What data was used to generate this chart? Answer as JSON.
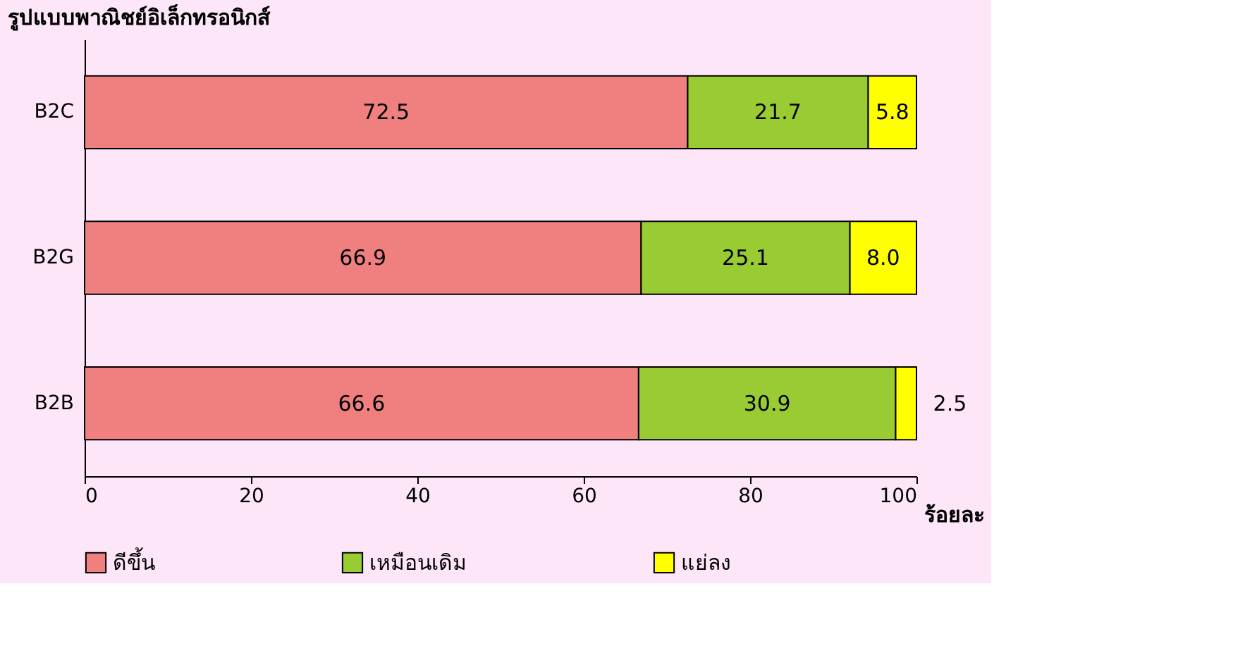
{
  "chart_data": {
    "type": "bar",
    "orientation": "horizontal",
    "stacked": true,
    "ylabel": "รูปแบบพาณิชย์อิเล็กทรอนิกส์",
    "xlabel": "ร้อยละ",
    "categories": [
      "B2C",
      "B2G",
      "B2B"
    ],
    "series": [
      {
        "name": "ดีขึ้น",
        "color": "#f08080",
        "values": [
          72.5,
          66.9,
          66.6
        ],
        "value_labels": [
          "72.5",
          "66.9",
          "66.6"
        ]
      },
      {
        "name": "เหมือนเดิม",
        "color": "#99cc33",
        "values": [
          21.7,
          25.1,
          30.9
        ],
        "value_labels": [
          "21.7",
          "25.1",
          "30.9"
        ]
      },
      {
        "name": "แย่ลง",
        "color": "#ffff00",
        "values": [
          5.8,
          8.0,
          2.5
        ],
        "value_labels": [
          "5.8",
          "8.0",
          "2.5"
        ]
      }
    ],
    "xlim": [
      0,
      100
    ],
    "xticks": [
      0,
      20,
      40,
      60,
      80,
      100
    ],
    "legend": "bottom",
    "grid": false
  }
}
